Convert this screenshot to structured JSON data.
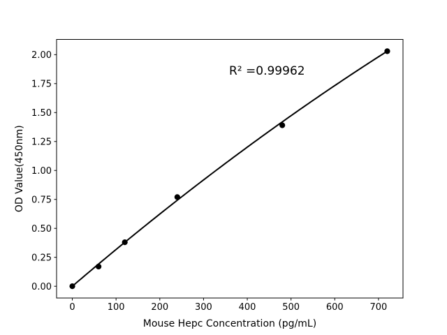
{
  "figure": {
    "background": "#ffffff"
  },
  "chart_data": {
    "type": "scatter",
    "title": "",
    "xlabel": "Mouse Hepc Concentration (pg/mL)",
    "ylabel": "OD Value(450nm)",
    "annotation": "R² =0.99962",
    "x": [
      0,
      60,
      120,
      240,
      480,
      720
    ],
    "y": [
      0.0,
      0.17,
      0.38,
      0.77,
      1.39,
      2.03
    ],
    "fit": {
      "type": "quadratic",
      "intercept": 0,
      "b": 0.0032332,
      "c": -5.747e-07,
      "x_range": [
        0,
        720
      ]
    },
    "xticks": {
      "values": [
        0,
        100,
        200,
        300,
        400,
        500,
        600,
        700
      ],
      "labels": [
        "0",
        "100",
        "200",
        "300",
        "400",
        "500",
        "600",
        "700"
      ]
    },
    "yticks": {
      "values": [
        0,
        0.25,
        0.5,
        0.75,
        1,
        1.25,
        1.5,
        1.75,
        2
      ],
      "labels": [
        "0.00",
        "0.25",
        "0.50",
        "0.75",
        "1.00",
        "1.25",
        "1.50",
        "1.75",
        "2.00"
      ]
    },
    "xlim": [
      -36,
      756
    ],
    "ylim": [
      -0.1015,
      2.1315
    ],
    "grid": false,
    "legend": null,
    "colors": {
      "marker": "#000000",
      "line": "#000000",
      "axis": "#000000",
      "text": "#000000",
      "background": "#ffffff"
    }
  }
}
